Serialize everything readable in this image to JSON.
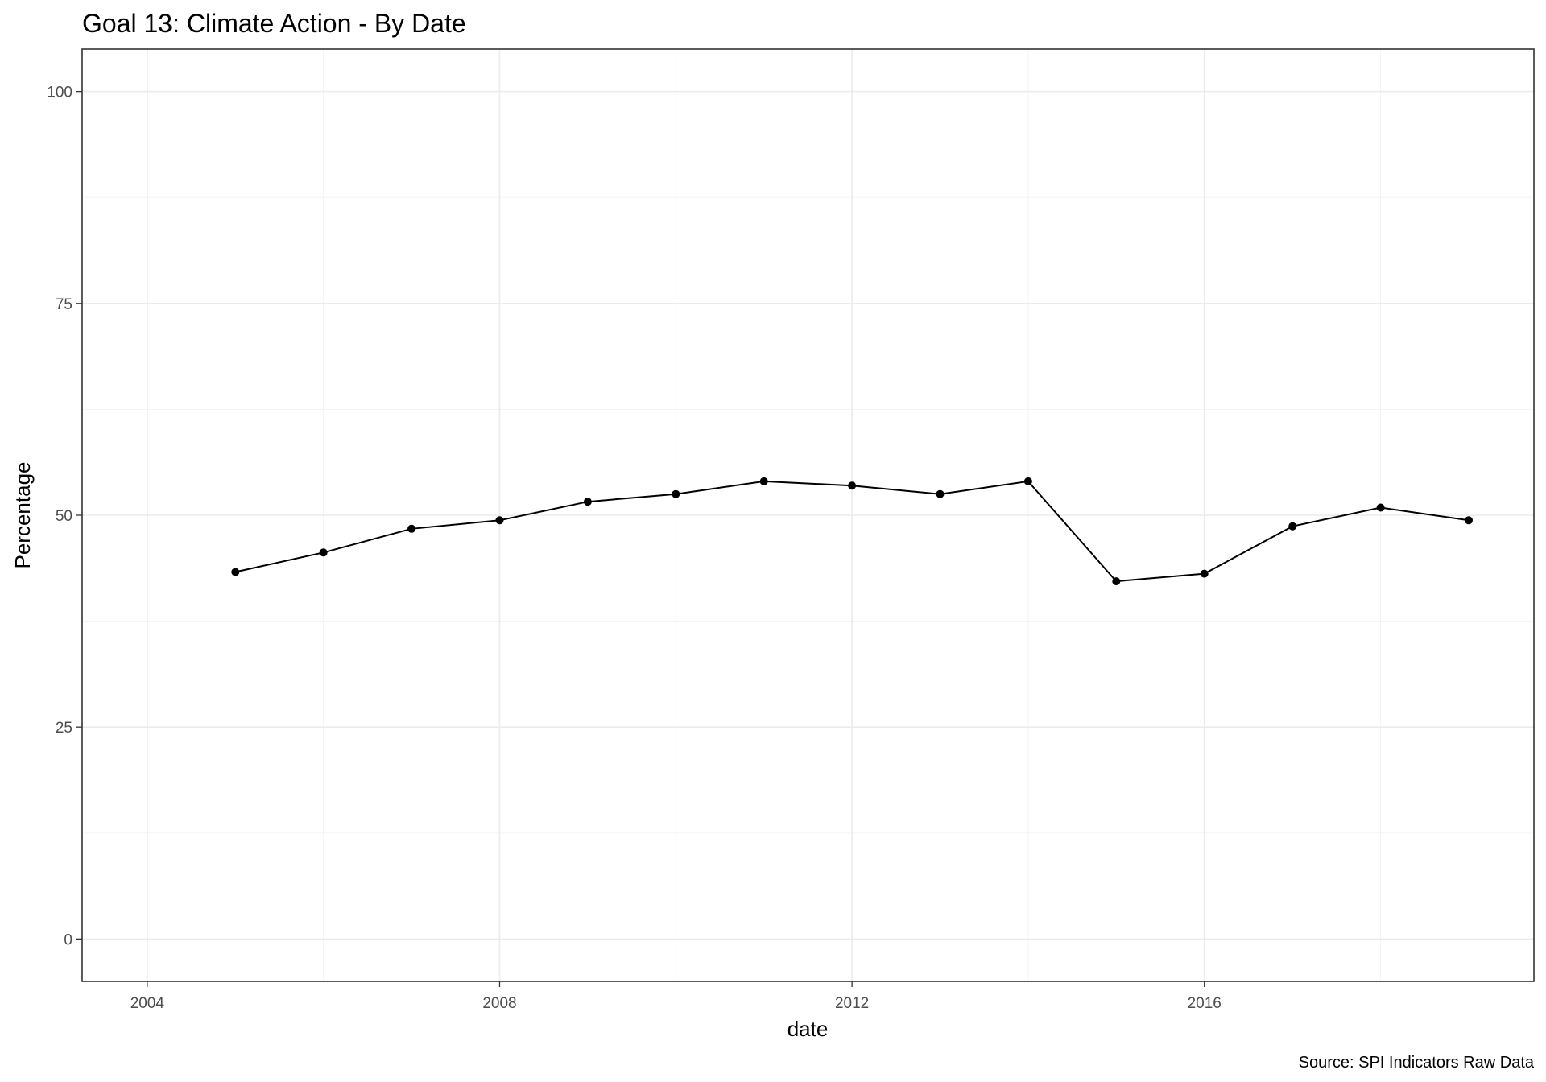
{
  "chart_data": {
    "type": "line",
    "title": "Goal 13: Climate Action - By Date",
    "xlabel": "date",
    "ylabel": "Percentage",
    "caption": "Source: SPI Indicators Raw Data",
    "x_ticks": [
      "2004",
      "2008",
      "2012",
      "2016"
    ],
    "y_ticks": [
      "0",
      "25",
      "50",
      "75",
      "100"
    ],
    "xlim": [
      "2003-04-05",
      "2019-09-28"
    ],
    "ylim": [
      -5,
      105
    ],
    "grid": true,
    "series": [
      {
        "color": "#000000",
        "x": [
          "2005",
          "2006",
          "2007",
          "2008",
          "2009",
          "2010",
          "2011",
          "2012",
          "2013",
          "2014",
          "2015",
          "2016",
          "2017",
          "2018",
          "2019"
        ],
        "values": [
          43.3,
          45.6,
          48.4,
          49.4,
          51.6,
          52.5,
          54.0,
          53.5,
          52.5,
          54.0,
          42.2,
          43.1,
          48.7,
          50.9,
          49.4
        ]
      }
    ]
  }
}
